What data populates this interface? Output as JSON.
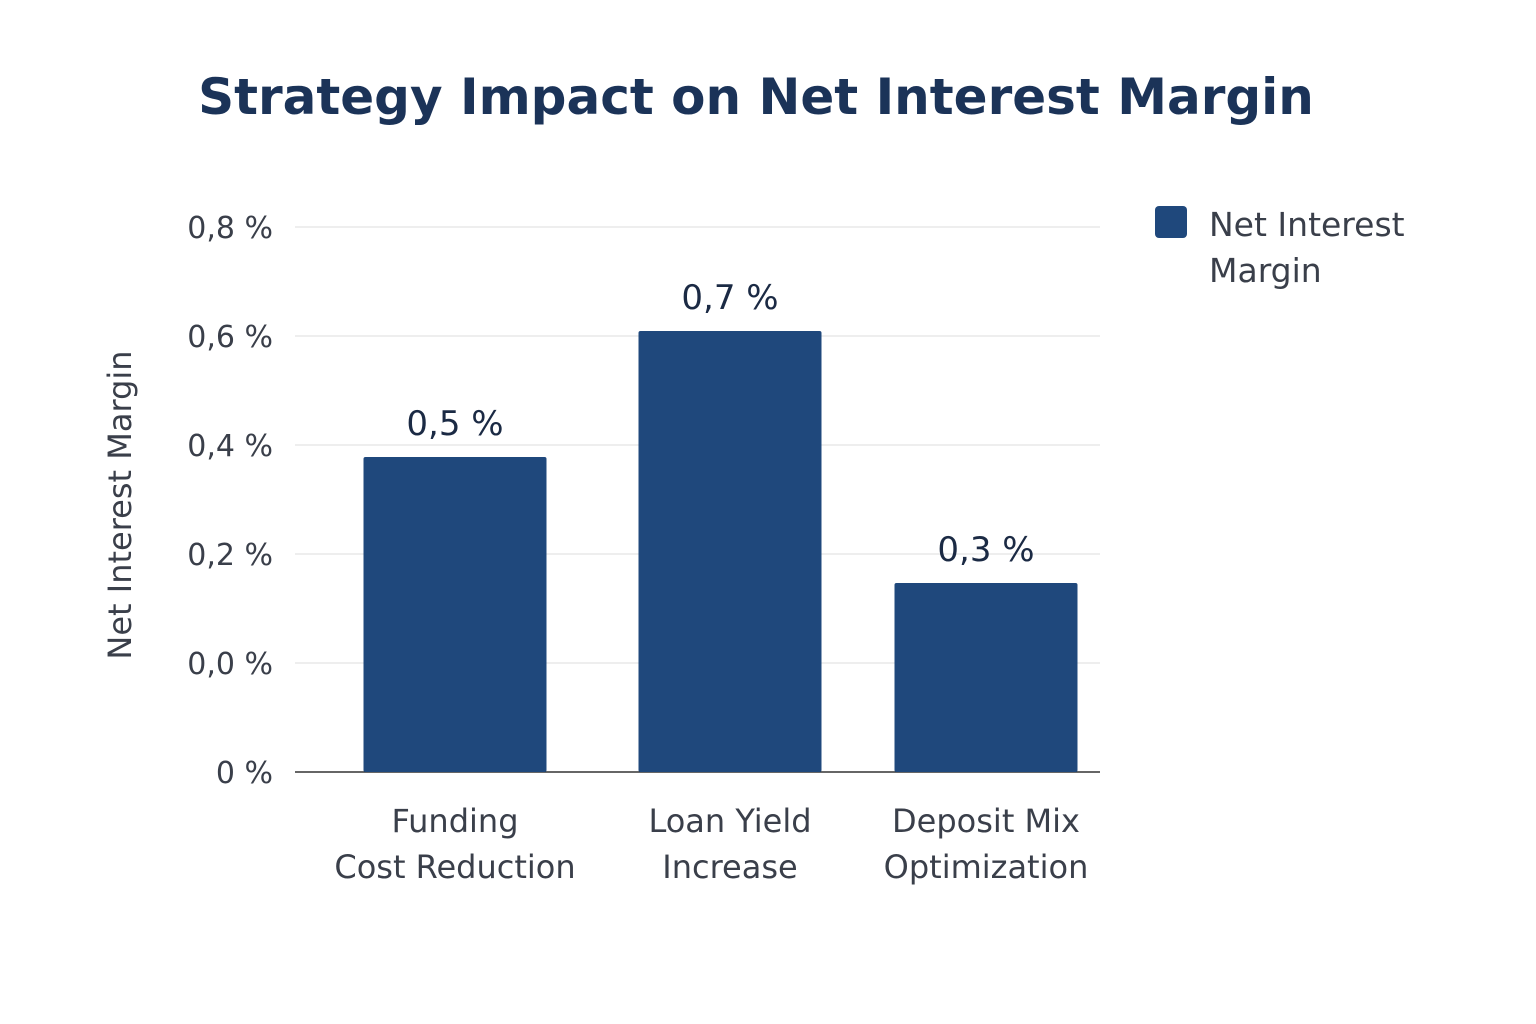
{
  "chart_data": {
    "type": "bar",
    "title": "Strategy Impact on Net Interest Margin",
    "ylabel": "Net Interest Margin",
    "xlabel": "",
    "categories": [
      [
        "Funding",
        "Cost Reduction"
      ],
      [
        "Loan Yield",
        "Increase"
      ],
      [
        "Deposit Mix",
        "Optimization"
      ]
    ],
    "series": [
      {
        "name": "Net Interest Margin",
        "values": [
          0.5,
          0.7,
          0.3
        ],
        "data_labels": [
          "0,5 %",
          "0,7 %",
          "0,3 %"
        ],
        "color": "#1f487c"
      }
    ],
    "y_tick_labels": [
      "0 %",
      "0,0 %",
      "0,2 %",
      "0,4 %",
      "0,6 %",
      "0,8 %"
    ],
    "grid": true,
    "legend_position": "right"
  }
}
